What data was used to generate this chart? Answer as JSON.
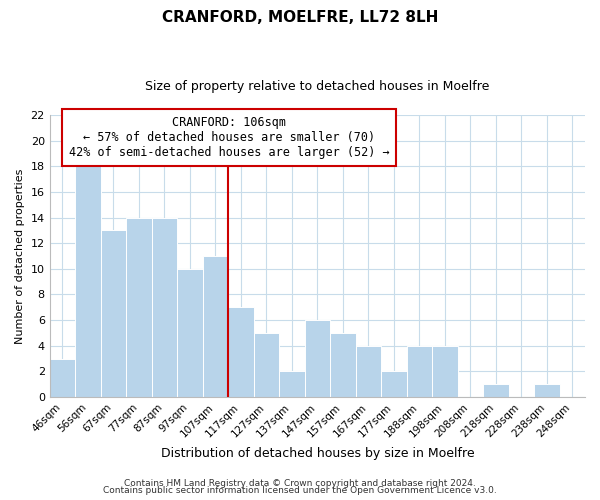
{
  "title": "CRANFORD, MOELFRE, LL72 8LH",
  "subtitle": "Size of property relative to detached houses in Moelfre",
  "xlabel": "Distribution of detached houses by size in Moelfre",
  "ylabel": "Number of detached properties",
  "bin_labels": [
    "46sqm",
    "56sqm",
    "67sqm",
    "77sqm",
    "87sqm",
    "97sqm",
    "107sqm",
    "117sqm",
    "127sqm",
    "137sqm",
    "147sqm",
    "157sqm",
    "167sqm",
    "177sqm",
    "188sqm",
    "198sqm",
    "208sqm",
    "218sqm",
    "228sqm",
    "238sqm",
    "248sqm"
  ],
  "bar_heights": [
    3,
    18,
    13,
    14,
    14,
    10,
    11,
    7,
    5,
    2,
    6,
    5,
    4,
    2,
    4,
    4,
    0,
    1,
    0,
    1,
    0
  ],
  "bar_color": "#b8d4ea",
  "bar_edge_color": "#ffffff",
  "vline_color": "#cc0000",
  "ylim": [
    0,
    22
  ],
  "yticks": [
    0,
    2,
    4,
    6,
    8,
    10,
    12,
    14,
    16,
    18,
    20,
    22
  ],
  "annotation_title": "CRANFORD: 106sqm",
  "annotation_line1": "← 57% of detached houses are smaller (70)",
  "annotation_line2": "42% of semi-detached houses are larger (52) →",
  "annotation_box_color": "#ffffff",
  "annotation_box_edge": "#cc0000",
  "footer_line1": "Contains HM Land Registry data © Crown copyright and database right 2024.",
  "footer_line2": "Contains public sector information licensed under the Open Government Licence v3.0.",
  "background_color": "#ffffff",
  "grid_color": "#c8dcea",
  "title_fontsize": 11,
  "subtitle_fontsize": 9,
  "ylabel_fontsize": 8,
  "xlabel_fontsize": 9
}
